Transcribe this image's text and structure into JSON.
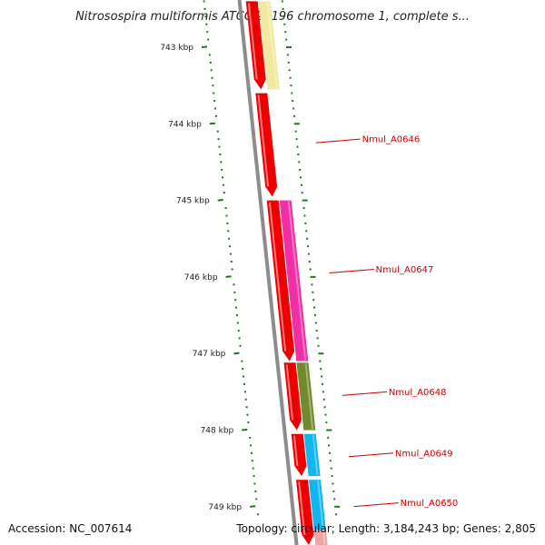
{
  "title": "Nitrosospira multiformis ATCC 25196 chromosome 1, complete s...",
  "footer": {
    "accession": "Accession: NC_007614",
    "summary": "Topology: circular; Length: 3,184,243 bp; Genes: 2,805"
  },
  "scale": {
    "unit": "kbp",
    "ticks": [
      {
        "kbp": 743,
        "label": "743 kbp"
      },
      {
        "kbp": 744,
        "label": "744 kbp"
      },
      {
        "kbp": 745,
        "label": "745 kbp"
      },
      {
        "kbp": 746,
        "label": "746 kbp"
      },
      {
        "kbp": 747,
        "label": "747 kbp"
      },
      {
        "kbp": 748,
        "label": "748 kbp"
      },
      {
        "kbp": 749,
        "label": "749 kbp"
      }
    ]
  },
  "colors": {
    "backbone": "#8c8c8c",
    "scale": "#1e7a1e",
    "cds": "#ee0000",
    "label": "#cc0000",
    "feature_pale_yellow": "#f2e9a0",
    "feature_magenta": "#ee2fa6",
    "feature_olive": "#728a2e",
    "feature_cyan": "#10b6ee",
    "feature_pink": "#f2a4a4"
  },
  "cds_track": [
    {
      "start": 742.4,
      "end": 743.55
    },
    {
      "start": 743.6,
      "end": 744.95
    },
    {
      "start": 745.0,
      "end": 747.1
    },
    {
      "start": 747.12,
      "end": 748.0
    },
    {
      "start": 748.05,
      "end": 748.6
    },
    {
      "start": 748.65,
      "end": 749.5
    }
  ],
  "feature_track": [
    {
      "start": 742.4,
      "end": 743.55,
      "color": "#f2e9a0"
    },
    {
      "start": 745.0,
      "end": 747.1,
      "color": "#ee2fa6",
      "label": "Nmul_A0647",
      "label_at": 745.9
    },
    {
      "start": 747.12,
      "end": 748.0,
      "color": "#728a2e",
      "label": "Nmul_A0648",
      "label_at": 747.5
    },
    {
      "start": 748.05,
      "end": 748.6,
      "color": "#10b6ee",
      "label": "Nmul_A0649",
      "label_at": 748.3
    },
    {
      "start": 748.65,
      "end": 749.5,
      "color": "#10b6ee",
      "label": "Nmul_A0650",
      "label_at": 748.95
    },
    {
      "start": 749.3,
      "end": 749.5,
      "color": "#f2a4a4"
    }
  ],
  "extra_labels": [
    {
      "label": "Nmul_A0646",
      "label_at": 744.2
    }
  ]
}
